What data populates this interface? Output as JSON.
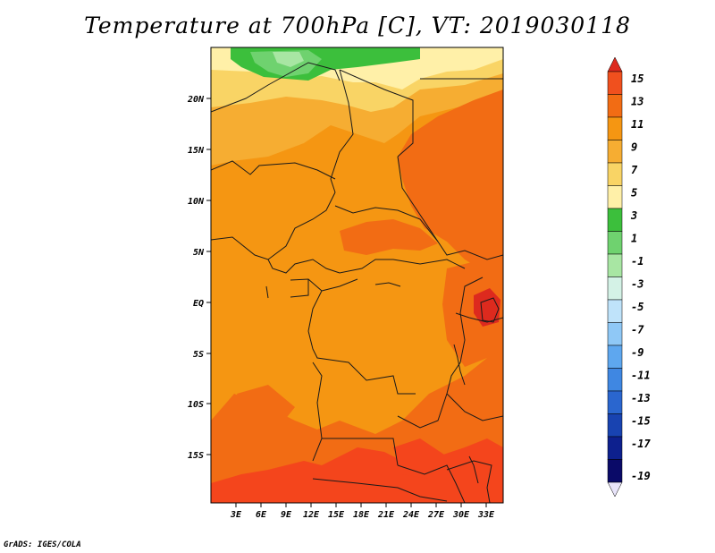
{
  "title": "Temperature at 700hPa [C], VT: 2019030118",
  "credit": "GrADS: IGES/COLA",
  "map": {
    "lat_labels": [
      "20N",
      "15N",
      "10N",
      "5N",
      "EQ",
      "5S",
      "10S",
      "15S"
    ],
    "lon_labels": [
      "3E",
      "6E",
      "9E",
      "12E",
      "15E",
      "18E",
      "21E",
      "24E",
      "27E",
      "30E",
      "33E"
    ]
  },
  "colorbar": {
    "labels": [
      "15",
      "13",
      "11",
      "9",
      "7",
      "5",
      "3",
      "1",
      "-1",
      "-3",
      "-5",
      "-7",
      "-9",
      "-11",
      "-13",
      "-15",
      "-17",
      "-19"
    ],
    "colors": [
      "#dd2a1e",
      "#f0501e",
      "#f26c14",
      "#f59612",
      "#f6ad32",
      "#f9d465",
      "#fff0a8",
      "#3cbf3c",
      "#6fd26f",
      "#a8e6a3",
      "#d4f2e6",
      "#bfe3fa",
      "#8fc8f6",
      "#5ea7ef",
      "#3f87e2",
      "#2a66cf",
      "#1843b1",
      "#0d208e",
      "#0a0a68",
      "#e8e4fa"
    ]
  },
  "palette": {
    "hot": "#f4451c",
    "warm": "#f26c14",
    "main": "#f59612",
    "light": "#f6ad32",
    "pale": "#f9d465",
    "cream": "#fff0a8",
    "green": "#3cbf3c",
    "lightgreen": "#6fd26f",
    "palegreen": "#a8e6a3"
  }
}
